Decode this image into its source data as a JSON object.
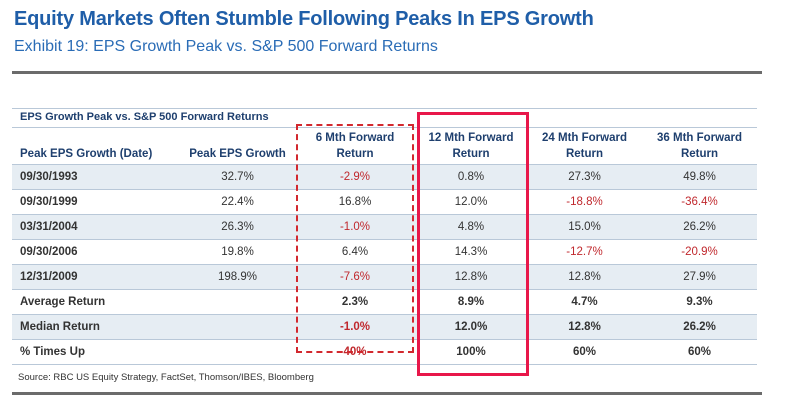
{
  "header": {
    "title": "Equity Markets Often Stumble Following Peaks In EPS Growth",
    "subtitle": "Exhibit 19: EPS Growth Peak vs. S&P 500 Forward Returns"
  },
  "table": {
    "title": "EPS Growth Peak vs. S&P 500 Forward Returns",
    "columns": [
      {
        "line1": "",
        "line2": "Peak EPS Growth (Date)"
      },
      {
        "line1": "",
        "line2": "Peak EPS Growth"
      },
      {
        "line1": "6 Mth Forward",
        "line2": "Return"
      },
      {
        "line1": "12 Mth Forward",
        "line2": "Return"
      },
      {
        "line1": "24 Mth Forward",
        "line2": "Return"
      },
      {
        "line1": "36 Mth Forward",
        "line2": "Return"
      }
    ],
    "rows": [
      {
        "date": "09/30/1993",
        "peak": "32.7%",
        "m6": "-2.9%",
        "m12": "0.8%",
        "m24": "27.3%",
        "m36": "49.8%"
      },
      {
        "date": "09/30/1999",
        "peak": "22.4%",
        "m6": "16.8%",
        "m12": "12.0%",
        "m24": "-18.8%",
        "m36": "-36.4%"
      },
      {
        "date": "03/31/2004",
        "peak": "26.3%",
        "m6": "-1.0%",
        "m12": "4.8%",
        "m24": "15.0%",
        "m36": "26.2%"
      },
      {
        "date": "09/30/2006",
        "peak": "19.8%",
        "m6": "6.4%",
        "m12": "14.3%",
        "m24": "-12.7%",
        "m36": "-20.9%"
      },
      {
        "date": "12/31/2009",
        "peak": "198.9%",
        "m6": "-7.6%",
        "m12": "12.8%",
        "m24": "12.8%",
        "m36": "27.9%"
      }
    ],
    "summary": [
      {
        "label": "Average Return",
        "peak": "",
        "m6": "2.3%",
        "m12": "8.9%",
        "m24": "4.7%",
        "m36": "9.3%"
      },
      {
        "label": "Median Return",
        "peak": "",
        "m6": "-1.0%",
        "m12": "12.0%",
        "m24": "12.8%",
        "m36": "26.2%"
      },
      {
        "label": "% Times Up",
        "peak": "",
        "m6": "40%",
        "m12": "100%",
        "m24": "60%",
        "m36": "60%"
      }
    ]
  },
  "highlights": {
    "dashed_column": "6 Mth Forward Return",
    "solid_column": "12 Mth Forward Return",
    "negative_color": "#c0282d",
    "highlight_color": "#e8174a"
  },
  "source": "Source: RBC US Equity Strategy, FactSet, Thomson/IBES, Bloomberg"
}
